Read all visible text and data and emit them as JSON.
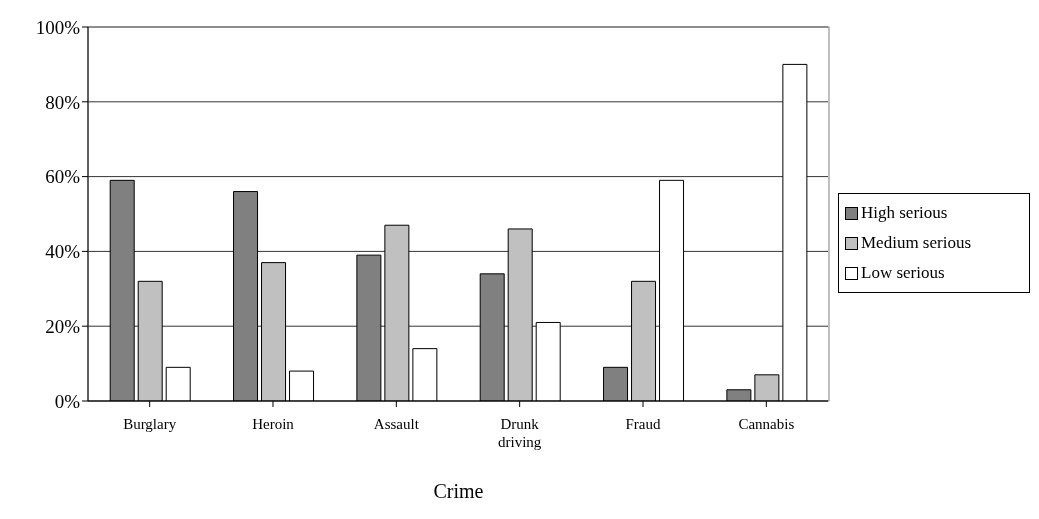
{
  "chart_data": {
    "type": "bar",
    "xlabel": "Crime",
    "categories": [
      "Burglary",
      "Heroin",
      "Assault",
      "Drunk driving",
      "Fraud",
      "Cannabis"
    ],
    "series": [
      {
        "name": "High serious",
        "color": "#808080",
        "values": [
          59,
          56,
          39,
          34,
          9,
          3
        ]
      },
      {
        "name": "Medium serious",
        "color": "#c0c0c0",
        "values": [
          32,
          37,
          47,
          46,
          32,
          7
        ]
      },
      {
        "name": "Low serious",
        "color": "#ffffff",
        "values": [
          9,
          8,
          14,
          21,
          59,
          90
        ]
      }
    ],
    "ylim": [
      0,
      100
    ],
    "yticks": [
      {
        "value": 0,
        "label": "0%"
      },
      {
        "value": 20,
        "label": "20%"
      },
      {
        "value": 40,
        "label": "40%"
      },
      {
        "value": 60,
        "label": "60%"
      },
      {
        "value": 80,
        "label": "80%"
      },
      {
        "value": 100,
        "label": "100%"
      }
    ],
    "grid": "y",
    "legend": "right"
  }
}
